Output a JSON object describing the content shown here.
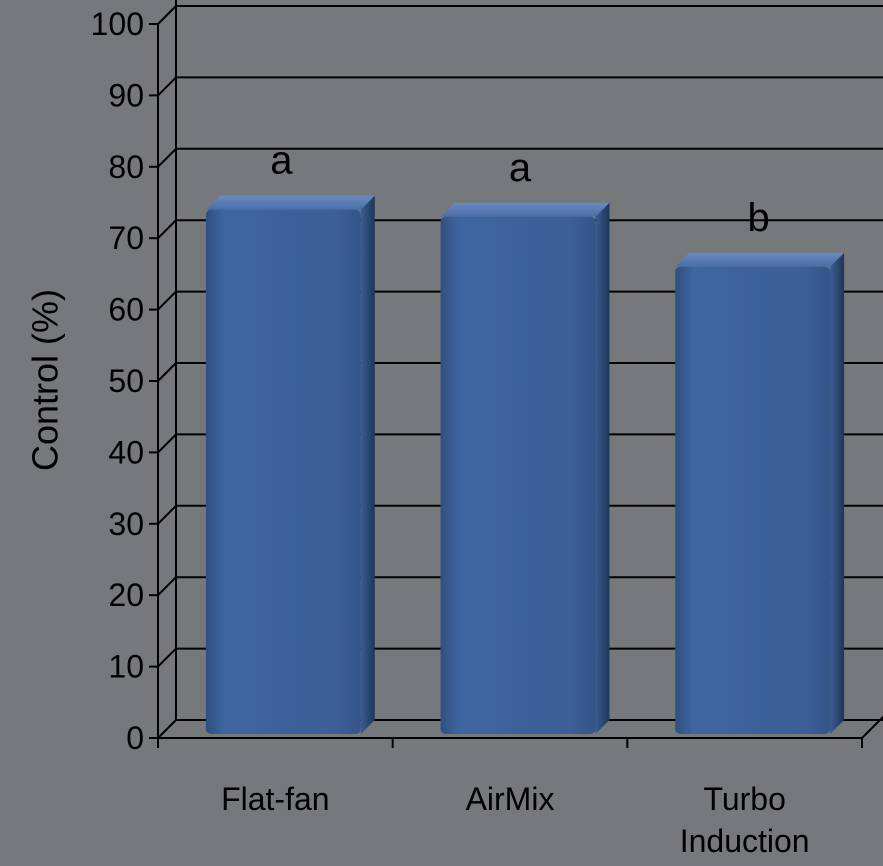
{
  "chart_data": {
    "type": "bar",
    "title": "",
    "xlabel": "",
    "ylabel": "Control (%)",
    "ylim": [
      0,
      100
    ],
    "yticks": [
      0,
      10,
      20,
      30,
      40,
      50,
      60,
      70,
      80,
      90,
      100
    ],
    "categories": [
      "Flat-fan",
      "AirMix",
      "Turbo Induction"
    ],
    "category_label_lines": [
      [
        "Flat-fan"
      ],
      [
        "AirMix"
      ],
      [
        "Turbo",
        "Induction"
      ]
    ],
    "values": [
      74,
      73,
      66
    ],
    "significance_letters": [
      "a",
      "a",
      "b"
    ],
    "grid": true,
    "style": "3d-column",
    "colors": {
      "bar": "#3b5f94",
      "background": "#76797b",
      "lines": "#000000"
    }
  }
}
